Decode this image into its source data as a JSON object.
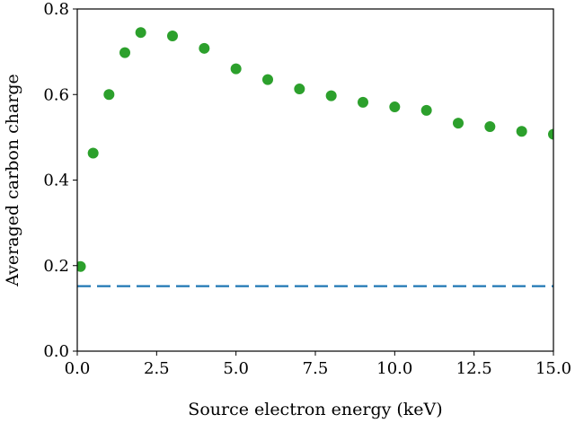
{
  "chart_data": {
    "type": "scatter",
    "xlabel": "Source electron energy (keV)",
    "ylabel": "Averaged carbon charge",
    "xlim": [
      0,
      15
    ],
    "ylim": [
      0,
      0.8
    ],
    "x_ticks": [
      0,
      2.5,
      5,
      7.5,
      10,
      12.5,
      15
    ],
    "x_tick_labels": [
      "0.0",
      "2.5",
      "5.0",
      "7.5",
      "10.0",
      "12.5",
      "15.0"
    ],
    "y_ticks": [
      0,
      0.2,
      0.4,
      0.6,
      0.8
    ],
    "y_tick_labels": [
      "0.0",
      "0.2",
      "0.4",
      "0.6",
      "0.8"
    ],
    "grid": false,
    "series": [
      {
        "type": "scatter",
        "color": "#2ca02c",
        "points": [
          {
            "x": 0.1,
            "y": 0.198
          },
          {
            "x": 0.5,
            "y": 0.463
          },
          {
            "x": 1,
            "y": 0.6
          },
          {
            "x": 1.5,
            "y": 0.698
          },
          {
            "x": 2,
            "y": 0.745
          },
          {
            "x": 3,
            "y": 0.737
          },
          {
            "x": 4,
            "y": 0.708
          },
          {
            "x": 5,
            "y": 0.66
          },
          {
            "x": 6,
            "y": 0.635
          },
          {
            "x": 7,
            "y": 0.613
          },
          {
            "x": 8,
            "y": 0.597
          },
          {
            "x": 9,
            "y": 0.582
          },
          {
            "x": 10,
            "y": 0.571
          },
          {
            "x": 11,
            "y": 0.563
          },
          {
            "x": 12,
            "y": 0.533
          },
          {
            "x": 13,
            "y": 0.525
          },
          {
            "x": 14,
            "y": 0.514
          },
          {
            "x": 15,
            "y": 0.507
          }
        ]
      },
      {
        "type": "hline",
        "color": "#1f77b4",
        "linestyle": "dashed",
        "y": 0.152
      }
    ]
  }
}
